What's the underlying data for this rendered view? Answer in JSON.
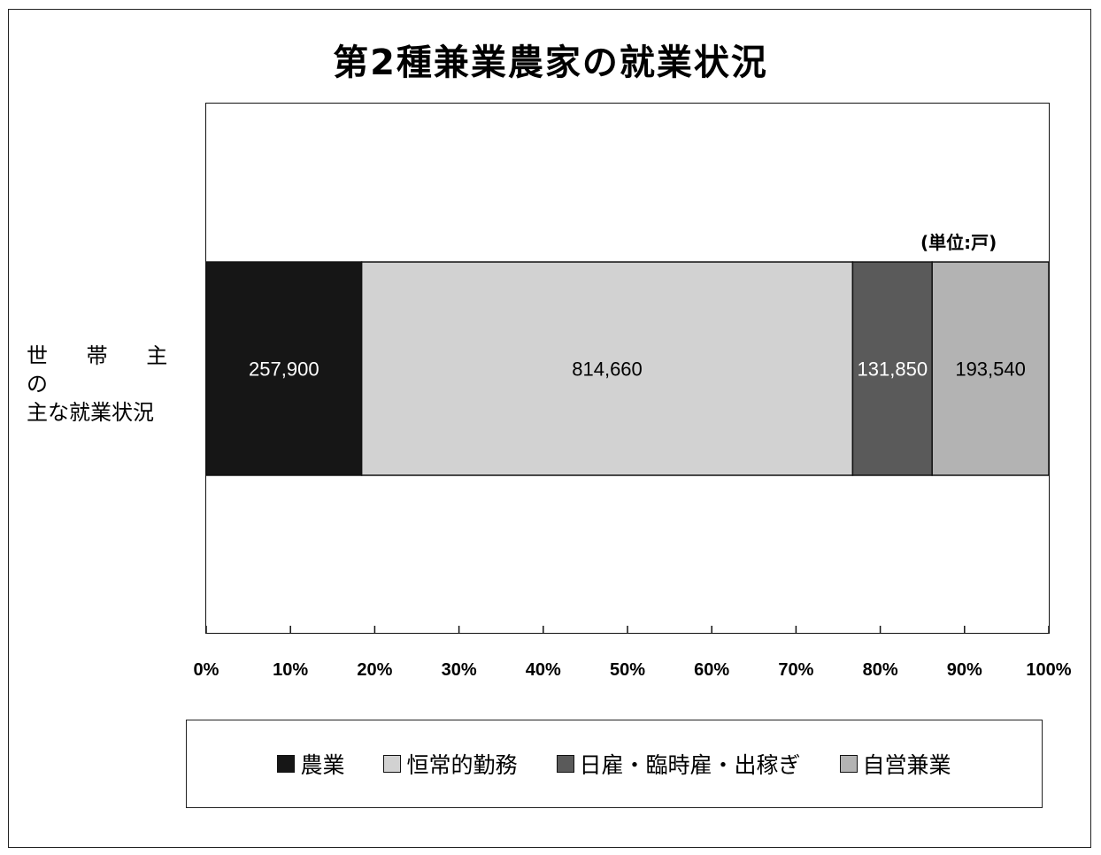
{
  "chart_data": {
    "type": "bar",
    "orientation": "horizontal",
    "stacked": "percent",
    "title": "第2種兼業農家の就業状況",
    "unit_note": "(単位:戸)",
    "categories": [
      "世 帯 主 の",
      "主な就業状況"
    ],
    "category_label_lines": [
      "世 帯 主 の",
      "主な就業状況"
    ],
    "series": [
      {
        "name": "農業",
        "value": 257900,
        "label": "257,900",
        "color": "#161616",
        "label_color": "#ffffff"
      },
      {
        "name": "恒常的勤務",
        "value": 814660,
        "label": "814,660",
        "color": "#d2d2d2",
        "label_color": "#000000"
      },
      {
        "name": "日雇・臨時雇・出稼ぎ",
        "value": 131850,
        "label": "131,850",
        "color": "#5a5a5a",
        "label_color": "#ffffff"
      },
      {
        "name": "自営兼業",
        "value": 193540,
        "label": "193,540",
        "color": "#b3b3b3",
        "label_color": "#000000"
      }
    ],
    "x_ticks": [
      "0%",
      "10%",
      "20%",
      "30%",
      "40%",
      "50%",
      "60%",
      "70%",
      "80%",
      "90%",
      "100%"
    ],
    "xlim": [
      0,
      100
    ],
    "grid": false,
    "legend_position": "bottom"
  }
}
